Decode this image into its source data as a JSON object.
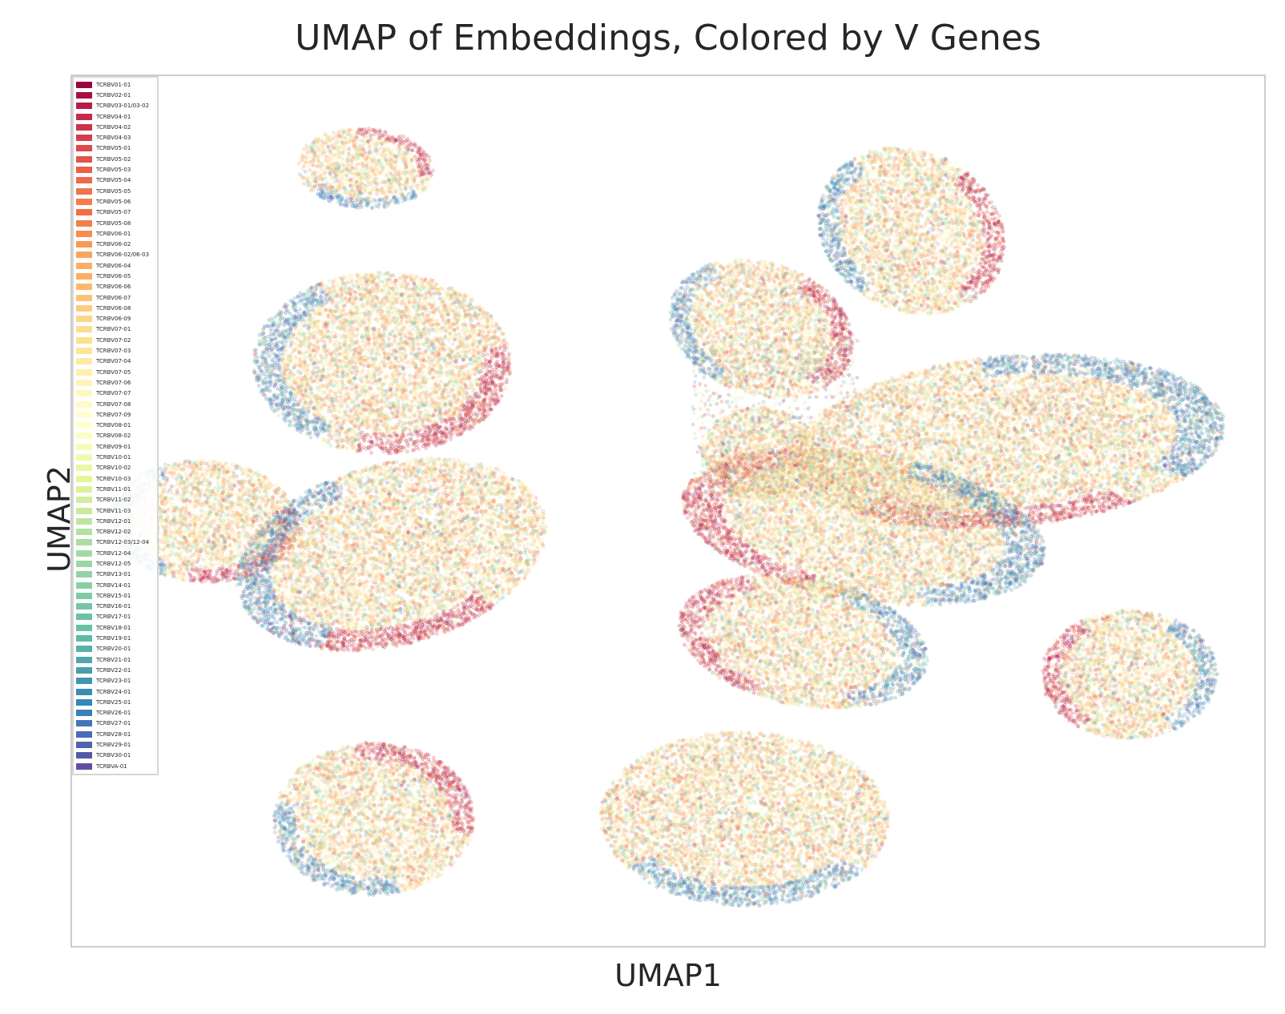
{
  "chart_data": {
    "type": "scatter",
    "title": "UMAP of Embeddings, Colored by V Genes",
    "xlabel": "UMAP1",
    "ylabel": "UMAP2",
    "xticks": "none",
    "yticks": "none",
    "grid": false,
    "legend_position": "top-left",
    "legend": [
      {
        "name": "TCRBV01-01",
        "color": "#9e0142"
      },
      {
        "name": "TCRBV02-01",
        "color": "#ab0f45"
      },
      {
        "name": "TCRBV03-01/03-02",
        "color": "#b81d48"
      },
      {
        "name": "TCRBV04-01",
        "color": "#c52a4b"
      },
      {
        "name": "TCRBV04-02",
        "color": "#ce344a"
      },
      {
        "name": "TCRBV04-03",
        "color": "#d53e4f"
      },
      {
        "name": "TCRBV05-01",
        "color": "#dc4a4c"
      },
      {
        "name": "TCRBV05-02",
        "color": "#e2564a"
      },
      {
        "name": "TCRBV05-03",
        "color": "#e86149"
      },
      {
        "name": "TCRBV05-04",
        "color": "#ec6a48"
      },
      {
        "name": "TCRBV05-05",
        "color": "#f07349"
      },
      {
        "name": "TCRBV05-06",
        "color": "#f47d4d"
      },
      {
        "name": "TCRBV05-07",
        "color": "#f46d43"
      },
      {
        "name": "TCRBV05-08",
        "color": "#f67d4a"
      },
      {
        "name": "TCRBV06-01",
        "color": "#f88b51"
      },
      {
        "name": "TCRBV06-02",
        "color": "#f99858"
      },
      {
        "name": "TCRBV06-02/06-03",
        "color": "#faa45f"
      },
      {
        "name": "TCRBV06-04",
        "color": "#fbaf65"
      },
      {
        "name": "TCRBV06-05",
        "color": "#fdae61"
      },
      {
        "name": "TCRBV06-06",
        "color": "#fdb96b"
      },
      {
        "name": "TCRBV06-07",
        "color": "#fdc374"
      },
      {
        "name": "TCRBV06-08",
        "color": "#fdcc7e"
      },
      {
        "name": "TCRBV06-09",
        "color": "#fdd587"
      },
      {
        "name": "TCRBV07-01",
        "color": "#fedc8f"
      },
      {
        "name": "TCRBV07-02",
        "color": "#fee08b"
      },
      {
        "name": "TCRBV07-03",
        "color": "#fee597"
      },
      {
        "name": "TCRBV07-04",
        "color": "#feeaa2"
      },
      {
        "name": "TCRBV07-05",
        "color": "#feefad"
      },
      {
        "name": "TCRBV07-06",
        "color": "#fff3b7"
      },
      {
        "name": "TCRBV07-07",
        "color": "#fff7c0"
      },
      {
        "name": "TCRBV07-08",
        "color": "#fffac6"
      },
      {
        "name": "TCRBV07-09",
        "color": "#fffdcb"
      },
      {
        "name": "TCRBV08-01",
        "color": "#ffffcc"
      },
      {
        "name": "TCRBV08-02",
        "color": "#fbfdc2"
      },
      {
        "name": "TCRBV09-01",
        "color": "#f6fbb8"
      },
      {
        "name": "TCRBV10-01",
        "color": "#f0f9ad"
      },
      {
        "name": "TCRBV10-02",
        "color": "#eaf7a3"
      },
      {
        "name": "TCRBV10-03",
        "color": "#e6f598"
      },
      {
        "name": "TCRBV11-01",
        "color": "#dcf19a"
      },
      {
        "name": "TCRBV11-02",
        "color": "#d3ed9c"
      },
      {
        "name": "TCRBV11-03",
        "color": "#c9e99e"
      },
      {
        "name": "TCRBV12-01",
        "color": "#bfe5a0"
      },
      {
        "name": "TCRBV12-02",
        "color": "#b5e1a2"
      },
      {
        "name": "TCRBV12-03/12-04",
        "color": "#abdda4"
      },
      {
        "name": "TCRBV12-04",
        "color": "#a3daa4"
      },
      {
        "name": "TCRBV12-05",
        "color": "#9bd6a4"
      },
      {
        "name": "TCRBV13-01",
        "color": "#92d2a4"
      },
      {
        "name": "TCRBV14-01",
        "color": "#89cfa5"
      },
      {
        "name": "TCRBV15-01",
        "color": "#80cba5"
      },
      {
        "name": "TCRBV16-01",
        "color": "#76c6a6"
      },
      {
        "name": "TCRBV17-01",
        "color": "#6cc2a6"
      },
      {
        "name": "TCRBV18-01",
        "color": "#66c2a5"
      },
      {
        "name": "TCRBV19-01",
        "color": "#5fb9a8"
      },
      {
        "name": "TCRBV20-01",
        "color": "#58b0aa"
      },
      {
        "name": "TCRBV21-01",
        "color": "#51a7ad"
      },
      {
        "name": "TCRBV22-01",
        "color": "#4a9db0"
      },
      {
        "name": "TCRBV23-01",
        "color": "#4294b3"
      },
      {
        "name": "TCRBV24-01",
        "color": "#3b8bb6"
      },
      {
        "name": "TCRBV25-01",
        "color": "#3288bd"
      },
      {
        "name": "TCRBV26-01",
        "color": "#3a7fbb"
      },
      {
        "name": "TCRBV27-01",
        "color": "#4276b8"
      },
      {
        "name": "TCRBV28-01",
        "color": "#496cb4"
      },
      {
        "name": "TCRBV29-01",
        "color": "#5063b0"
      },
      {
        "name": "TCRBV30-01",
        "color": "#5559aa"
      },
      {
        "name": "TCRBVA-01",
        "color": "#5e4fa2"
      }
    ],
    "xlim": [
      0,
      100
    ],
    "ylim": [
      0,
      100
    ],
    "clusters": [
      {
        "cx": 24.6,
        "cy": 89.4,
        "rx": 5.8,
        "ry": 4.6,
        "rot": -8,
        "blue_edge": "bottom",
        "red_edge": "top-right"
      },
      {
        "cx": 26.0,
        "cy": 67.0,
        "rx": 10.8,
        "ry": 10.4,
        "rot": -6,
        "blue_edge": "left",
        "red_edge": "bottom-right"
      },
      {
        "cx": 11.0,
        "cy": 48.8,
        "rx": 8.0,
        "ry": 7.0,
        "rot": -10,
        "blue_edge": "left",
        "red_edge": "bottom-right"
      },
      {
        "cx": 26.8,
        "cy": 45.0,
        "rx": 13.8,
        "ry": 10.0,
        "rot": 30,
        "blue_edge": "left",
        "red_edge": "bottom"
      },
      {
        "cx": 25.3,
        "cy": 14.6,
        "rx": 8.4,
        "ry": 8.8,
        "rot": -5,
        "blue_edge": "bottom-left",
        "red_edge": "top-right"
      },
      {
        "cx": 57.8,
        "cy": 71.0,
        "rx": 7.0,
        "ry": 8.6,
        "rot": 40,
        "blue_edge": "left",
        "red_edge": "right"
      },
      {
        "cx": 70.4,
        "cy": 82.2,
        "rx": 7.6,
        "ry": 9.8,
        "rot": 18,
        "blue_edge": "left",
        "red_edge": "right"
      },
      {
        "cx": 78.6,
        "cy": 58.0,
        "rx": 18.2,
        "ry": 9.8,
        "rot": 8,
        "blue_edge": "top-right",
        "red_edge": "bottom"
      },
      {
        "cx": 66.4,
        "cy": 48.2,
        "rx": 15.6,
        "ry": 8.4,
        "rot": -15,
        "blue_edge": "right",
        "red_edge": "left"
      },
      {
        "cx": 57.7,
        "cy": 56.6,
        "rx": 5.0,
        "ry": 5.4,
        "rot": 0,
        "blue_edge": "none",
        "red_edge": "none"
      },
      {
        "cx": 61.3,
        "cy": 35.0,
        "rx": 10.8,
        "ry": 7.2,
        "rot": -20,
        "blue_edge": "right",
        "red_edge": "left"
      },
      {
        "cx": 56.4,
        "cy": 14.6,
        "rx": 12.1,
        "ry": 10.0,
        "rot": -3,
        "blue_edge": "bottom",
        "red_edge": "none"
      },
      {
        "cx": 88.7,
        "cy": 31.2,
        "rx": 7.4,
        "ry": 7.4,
        "rot": 0,
        "blue_edge": "right",
        "red_edge": "left"
      }
    ]
  }
}
